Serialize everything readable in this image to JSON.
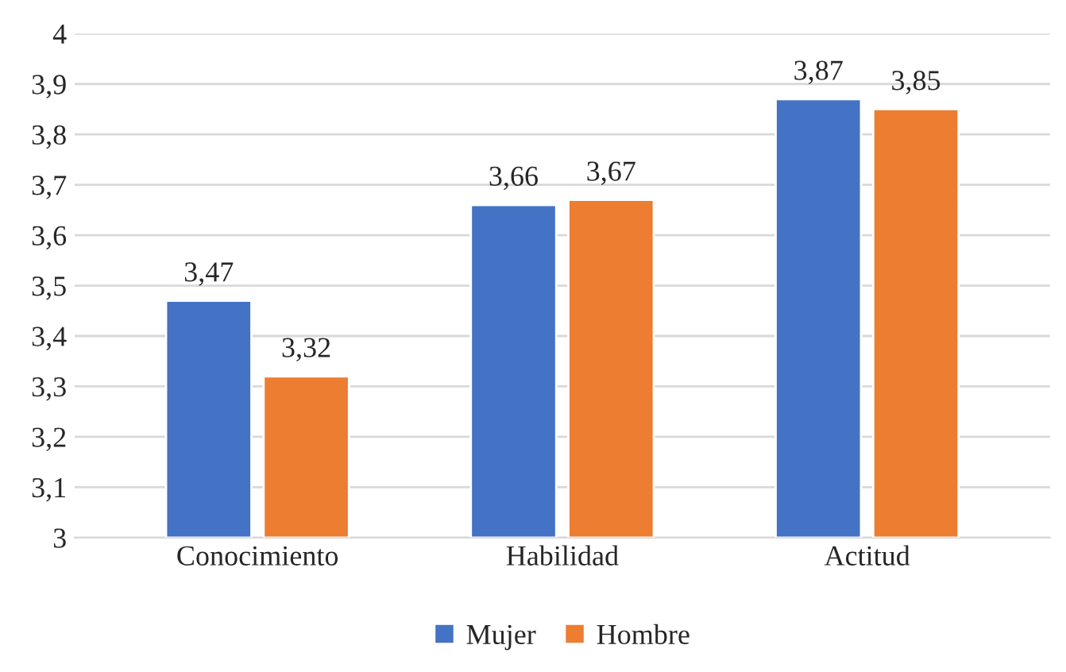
{
  "chart_data": {
    "type": "bar",
    "categories": [
      "Conocimiento",
      "Habilidad",
      "Actitud"
    ],
    "series": [
      {
        "name": "Mujer",
        "color": "#4472c4",
        "values": [
          3.47,
          3.66,
          3.87
        ],
        "value_labels": [
          "3,47",
          "3,66",
          "3,87"
        ]
      },
      {
        "name": "Hombre",
        "color": "#ed7d31",
        "values": [
          3.32,
          3.67,
          3.85
        ],
        "value_labels": [
          "3,32",
          "3,67",
          "3,85"
        ]
      }
    ],
    "ylim": [
      3,
      4
    ],
    "yticks": [
      3,
      {
        "value": 3.1,
        "label": "3,1"
      },
      {
        "value": 3.2,
        "label": "3,2"
      },
      {
        "value": 3.3,
        "label": "3,3"
      },
      {
        "value": 3.4,
        "label": "3,4"
      },
      {
        "value": 3.5,
        "label": "3,5"
      },
      {
        "value": 3.6,
        "label": "3,6"
      },
      {
        "value": 3.7,
        "label": "3,7"
      },
      {
        "value": 3.8,
        "label": "3,8"
      },
      {
        "value": 3.9,
        "label": "3,9"
      },
      4
    ],
    "grid": "y",
    "legend": "bottom"
  }
}
